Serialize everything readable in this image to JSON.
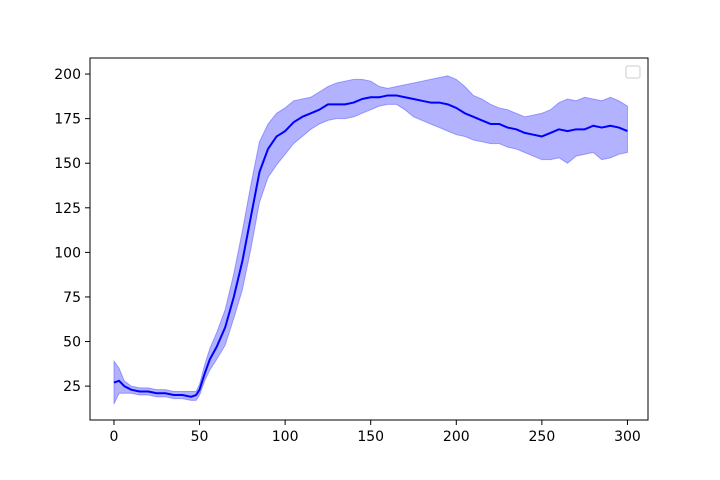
{
  "chart_data": {
    "type": "line",
    "title": "",
    "xlabel": "",
    "ylabel": "",
    "xlim": [
      -14,
      312
    ],
    "ylim": [
      6,
      209
    ],
    "xticks": [
      0,
      50,
      100,
      150,
      200,
      250,
      300
    ],
    "yticks": [
      25,
      50,
      75,
      100,
      125,
      150,
      175,
      200
    ],
    "grid": false,
    "legend": {
      "location": "top-right",
      "entries": []
    },
    "colors": {
      "line": "#0000ff",
      "band": "#0000ff",
      "band_alpha": 0.3
    },
    "series": [
      {
        "x": [
          0,
          3,
          6,
          10,
          15,
          20,
          25,
          30,
          35,
          40,
          45,
          48,
          50,
          53,
          56,
          60,
          65,
          70,
          75,
          80,
          85,
          90,
          95,
          100,
          105,
          110,
          115,
          120,
          125,
          130,
          135,
          140,
          145,
          150,
          155,
          160,
          165,
          170,
          175,
          180,
          185,
          190,
          195,
          200,
          205,
          210,
          215,
          220,
          225,
          230,
          235,
          240,
          245,
          250,
          255,
          260,
          265,
          270,
          275,
          280,
          285,
          290,
          295,
          300
        ],
        "mean": [
          27,
          28,
          25,
          23,
          22,
          22,
          21,
          21,
          20,
          20,
          19,
          20,
          23,
          32,
          40,
          47,
          58,
          75,
          95,
          120,
          145,
          158,
          165,
          168,
          173,
          176,
          178,
          180,
          183,
          183,
          183,
          184,
          186,
          187,
          187,
          188,
          188,
          187,
          186,
          185,
          184,
          184,
          183,
          181,
          178,
          176,
          174,
          172,
          172,
          170,
          169,
          167,
          166,
          165,
          167,
          169,
          168,
          169,
          169,
          171,
          170,
          171,
          170,
          168
        ],
        "upper": [
          39,
          35,
          28,
          25,
          24,
          24,
          23,
          23,
          22,
          22,
          22,
          22,
          26,
          37,
          46,
          55,
          68,
          88,
          112,
          138,
          162,
          172,
          178,
          181,
          185,
          186,
          187,
          190,
          193,
          195,
          196,
          197,
          197,
          196,
          193,
          192,
          193,
          194,
          195,
          196,
          197,
          198,
          199,
          197,
          193,
          188,
          186,
          183,
          181,
          180,
          178,
          176,
          177,
          178,
          180,
          184,
          186,
          185,
          187,
          186,
          185,
          187,
          185,
          182
        ],
        "lower": [
          15,
          21,
          21,
          21,
          20,
          20,
          19,
          19,
          18,
          18,
          17,
          17,
          20,
          28,
          34,
          40,
          48,
          63,
          79,
          102,
          128,
          142,
          149,
          155,
          161,
          165,
          169,
          172,
          174,
          175,
          175,
          176,
          178,
          180,
          182,
          183,
          183,
          180,
          176,
          174,
          172,
          170,
          168,
          166,
          165,
          163,
          162,
          161,
          161,
          159,
          158,
          156,
          154,
          152,
          152,
          153,
          150,
          154,
          155,
          156,
          152,
          153,
          155,
          156
        ]
      }
    ]
  }
}
